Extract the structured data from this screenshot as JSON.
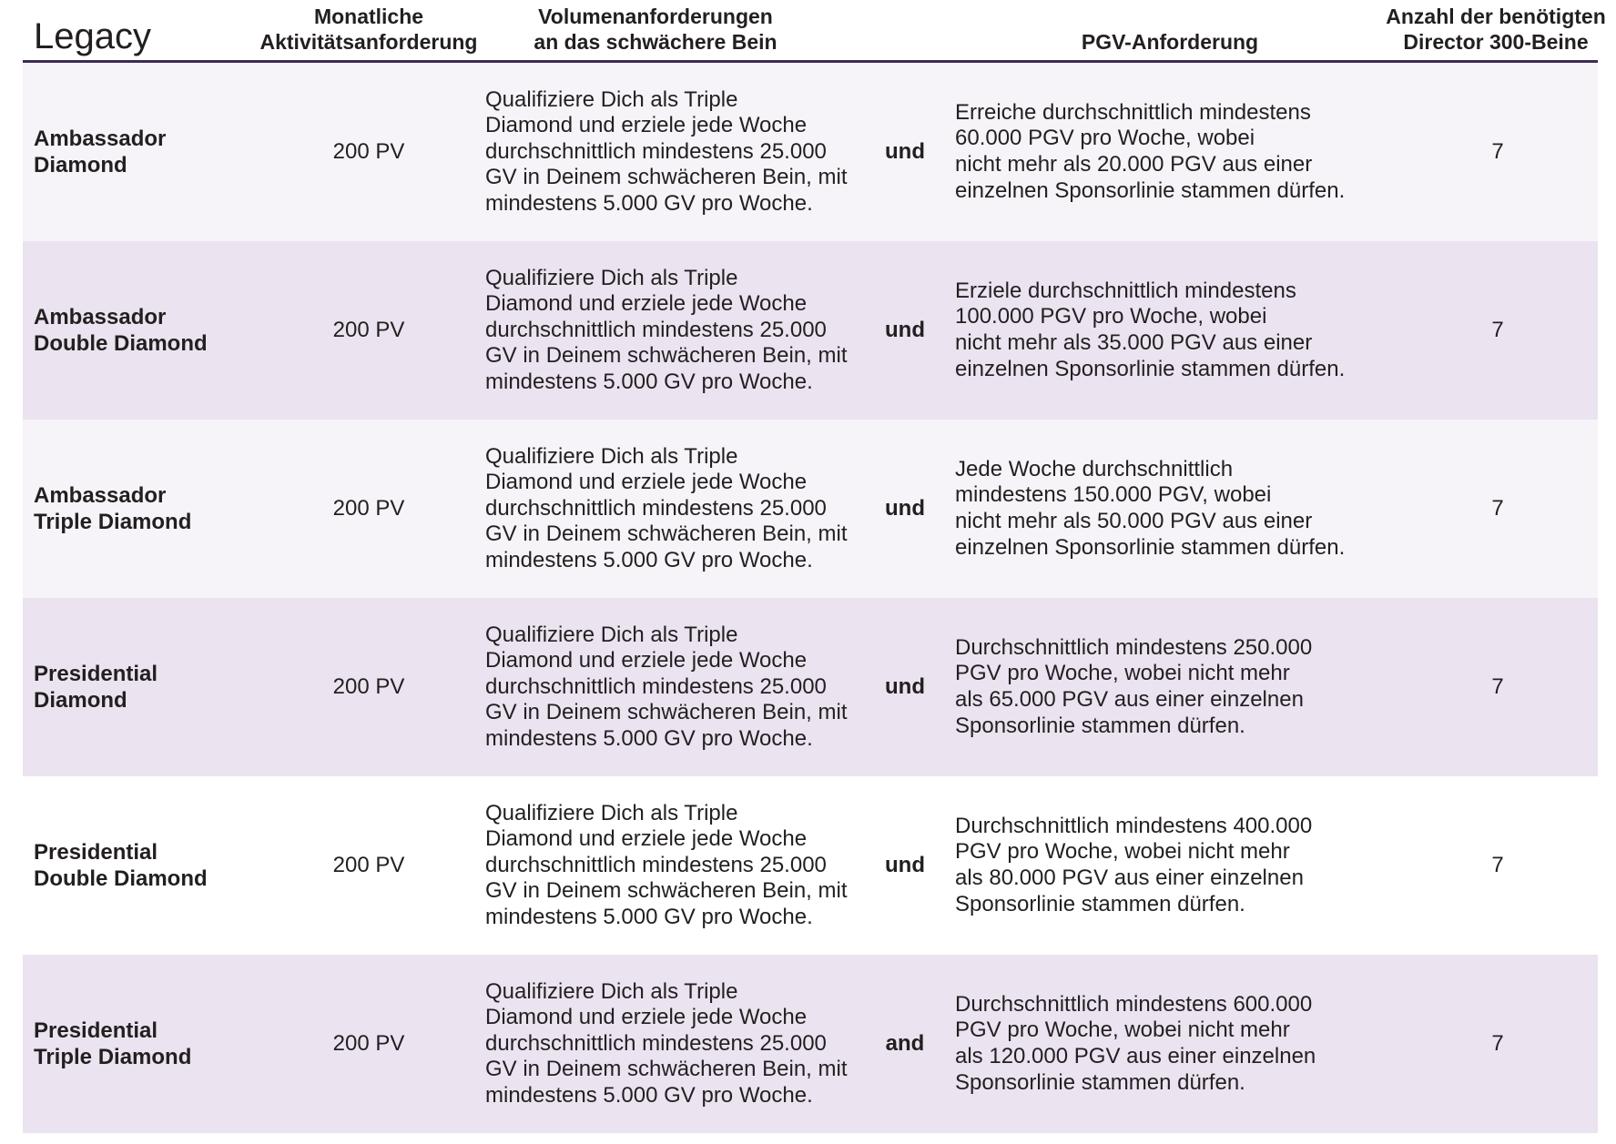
{
  "header": {
    "title": "Legacy",
    "col_activity": "Monatliche\nAktivitätsanforderung",
    "col_volume": "Volumenanforderungen\nan das schwächere Bein",
    "col_pgv": "PGV-Anforderung",
    "col_legs": "Anzahl der benötigten\nDirector 300-Beine"
  },
  "rows": [
    {
      "rank": "Ambassador\nDiamond",
      "pv": "200 PV",
      "volume": "Qualifiziere Dich als Triple\nDiamond und erziele jede Woche\ndurchschnittlich mindestens 25.000\nGV in Deinem schwächeren Bein, mit\nmindestens 5.000 GV pro Woche.",
      "conjunction": "und",
      "pgv": "Erreiche durchschnittlich mindestens\n60.000 PGV pro Woche, wobei\nnicht mehr als 20.000 PGV aus einer\neinzelnen Sponsorlinie stammen dürfen.",
      "legs": "7"
    },
    {
      "rank": "Ambassador\nDouble Diamond",
      "pv": "200 PV",
      "volume": "Qualifiziere Dich als Triple\nDiamond und erziele jede Woche\ndurchschnittlich mindestens 25.000\nGV in Deinem schwächeren Bein, mit\nmindestens 5.000 GV pro Woche.",
      "conjunction": "und",
      "pgv": "Erziele durchschnittlich mindestens\n100.000 PGV pro Woche, wobei\nnicht mehr als 35.000 PGV aus einer\neinzelnen Sponsorlinie stammen dürfen.",
      "legs": "7"
    },
    {
      "rank": "Ambassador\nTriple Diamond",
      "pv": "200 PV",
      "volume": "Qualifiziere Dich als Triple\nDiamond und erziele jede Woche\ndurchschnittlich mindestens 25.000\nGV in Deinem schwächeren Bein, mit\nmindestens 5.000 GV pro Woche.",
      "conjunction": "und",
      "pgv": "Jede Woche durchschnittlich\nmindestens 150.000 PGV, wobei\nnicht mehr als 50.000 PGV aus einer\neinzelnen Sponsorlinie stammen dürfen.",
      "legs": "7"
    },
    {
      "rank": "Presidential\nDiamond",
      "pv": "200 PV",
      "volume": "Qualifiziere Dich als Triple\nDiamond und erziele jede Woche\ndurchschnittlich mindestens 25.000\nGV in Deinem schwächeren Bein, mit\nmindestens 5.000 GV pro Woche.",
      "conjunction": "und",
      "pgv": "Durchschnittlich mindestens 250.000\nPGV pro Woche, wobei nicht mehr\nals 65.000 PGV aus einer einzelnen\nSponsorlinie stammen dürfen.",
      "legs": "7"
    },
    {
      "rank": "Presidential\nDouble Diamond",
      "pv": "200 PV",
      "volume": "Qualifiziere Dich als Triple\nDiamond und erziele jede Woche\ndurchschnittlich mindestens 25.000\nGV in Deinem schwächeren Bein, mit\nmindestens 5.000 GV pro Woche.",
      "conjunction": "und",
      "pgv": "Durchschnittlich mindestens 400.000\nPGV pro Woche, wobei nicht mehr\nals 80.000 PGV aus einer einzelnen\nSponsorlinie stammen dürfen.",
      "legs": "7"
    },
    {
      "rank": "Presidential\nTriple Diamond",
      "pv": "200 PV",
      "volume": "Qualifiziere Dich als Triple\nDiamond und erziele jede Woche\ndurchschnittlich mindestens 25.000\nGV in Deinem schwächeren Bein, mit\nmindestens 5.000 GV pro Woche.",
      "conjunction": "and",
      "pgv": "Durchschnittlich mindestens 600.000\nPGV pro Woche, wobei nicht mehr\nals 120.000 PGV aus einer einzelnen\nSponsorlinie stammen dürfen.",
      "legs": "7"
    }
  ]
}
